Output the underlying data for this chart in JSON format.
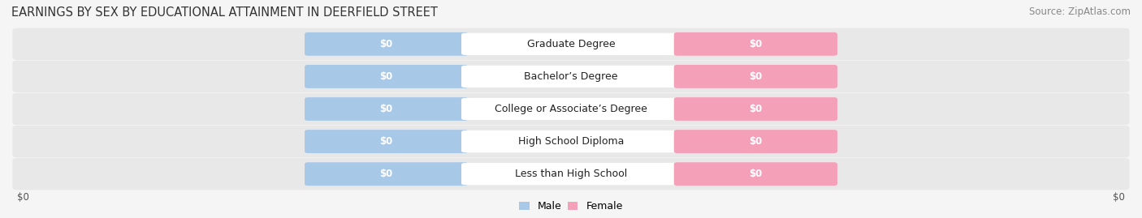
{
  "title": "EARNINGS BY SEX BY EDUCATIONAL ATTAINMENT IN DEERFIELD STREET",
  "source": "Source: ZipAtlas.com",
  "categories": [
    "Less than High School",
    "High School Diploma",
    "College or Associate’s Degree",
    "Bachelor’s Degree",
    "Graduate Degree"
  ],
  "male_color": "#a8c8e8",
  "female_color": "#f4a0b8",
  "bar_label": "$0",
  "xlabel_left": "$0",
  "xlabel_right": "$0",
  "background_color": "#f5f5f5",
  "row_bg_color": "#e8e8e8",
  "title_fontsize": 10.5,
  "source_fontsize": 8.5,
  "label_fontsize": 8.5,
  "cat_fontsize": 9
}
